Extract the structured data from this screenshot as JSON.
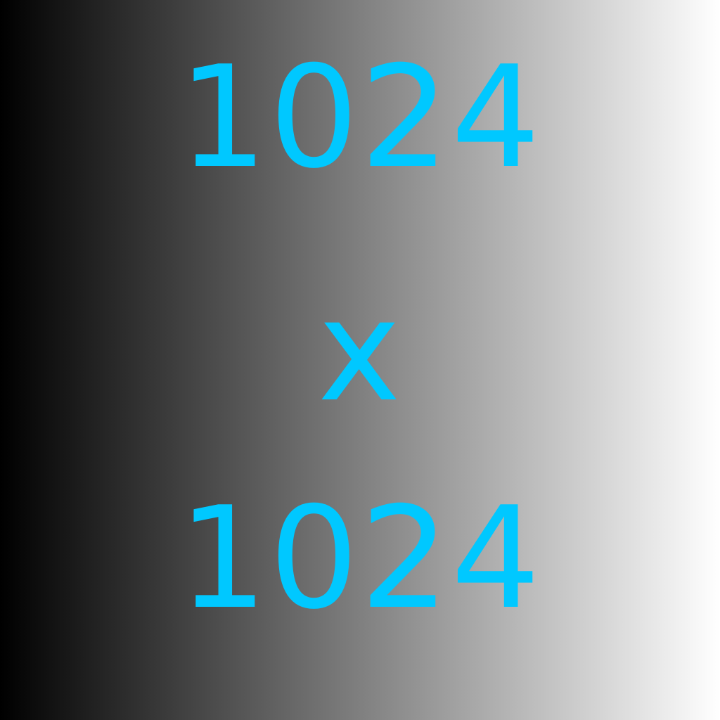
{
  "lines": {
    "top": "1024",
    "middle": "x",
    "bottom": "1024"
  },
  "colors": {
    "text": "#00c8ff",
    "gradient_start": "#000000",
    "gradient_end": "#ffffff"
  }
}
